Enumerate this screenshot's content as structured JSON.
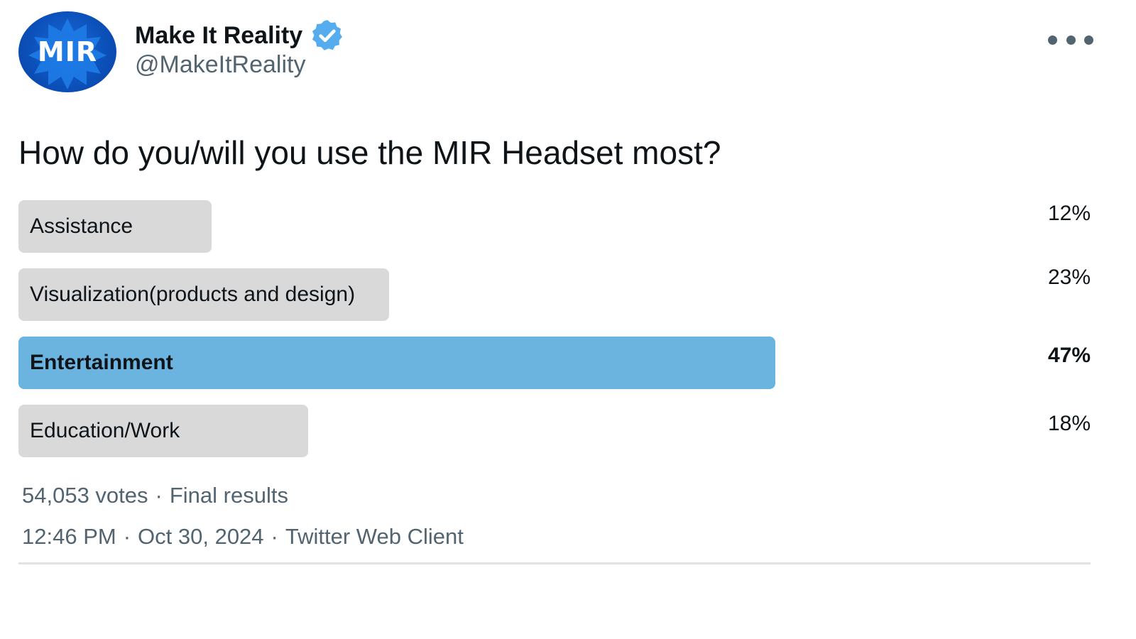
{
  "author": {
    "display_name": "Make It Reality",
    "handle": "@MakeItReality",
    "avatar_text": "MIR",
    "verified_color": "#55acee",
    "avatar_color": "#0b4fb8"
  },
  "menu": {
    "icon": "more-dots-icon"
  },
  "poll": {
    "question": "How do you/will you use the MIR Headset most?",
    "options": [
      {
        "label": "Assistance",
        "percent_label": "12%",
        "share": 0.12,
        "winner": false
      },
      {
        "label": "Visualization(products and design)",
        "percent_label": "23%",
        "share": 0.23,
        "winner": false
      },
      {
        "label": "Entertainment",
        "percent_label": "47%",
        "share": 0.47,
        "winner": true
      },
      {
        "label": "Education/Work",
        "percent_label": "18%",
        "share": 0.18,
        "winner": false
      }
    ],
    "votes": "54,053 votes",
    "status": "Final results",
    "bar_color": "#d9d9d9",
    "winner_color": "#6cb4e0"
  },
  "timestamp": {
    "time": "12:46 PM",
    "date": "Oct 30, 2024",
    "client": "Twitter Web Client"
  }
}
